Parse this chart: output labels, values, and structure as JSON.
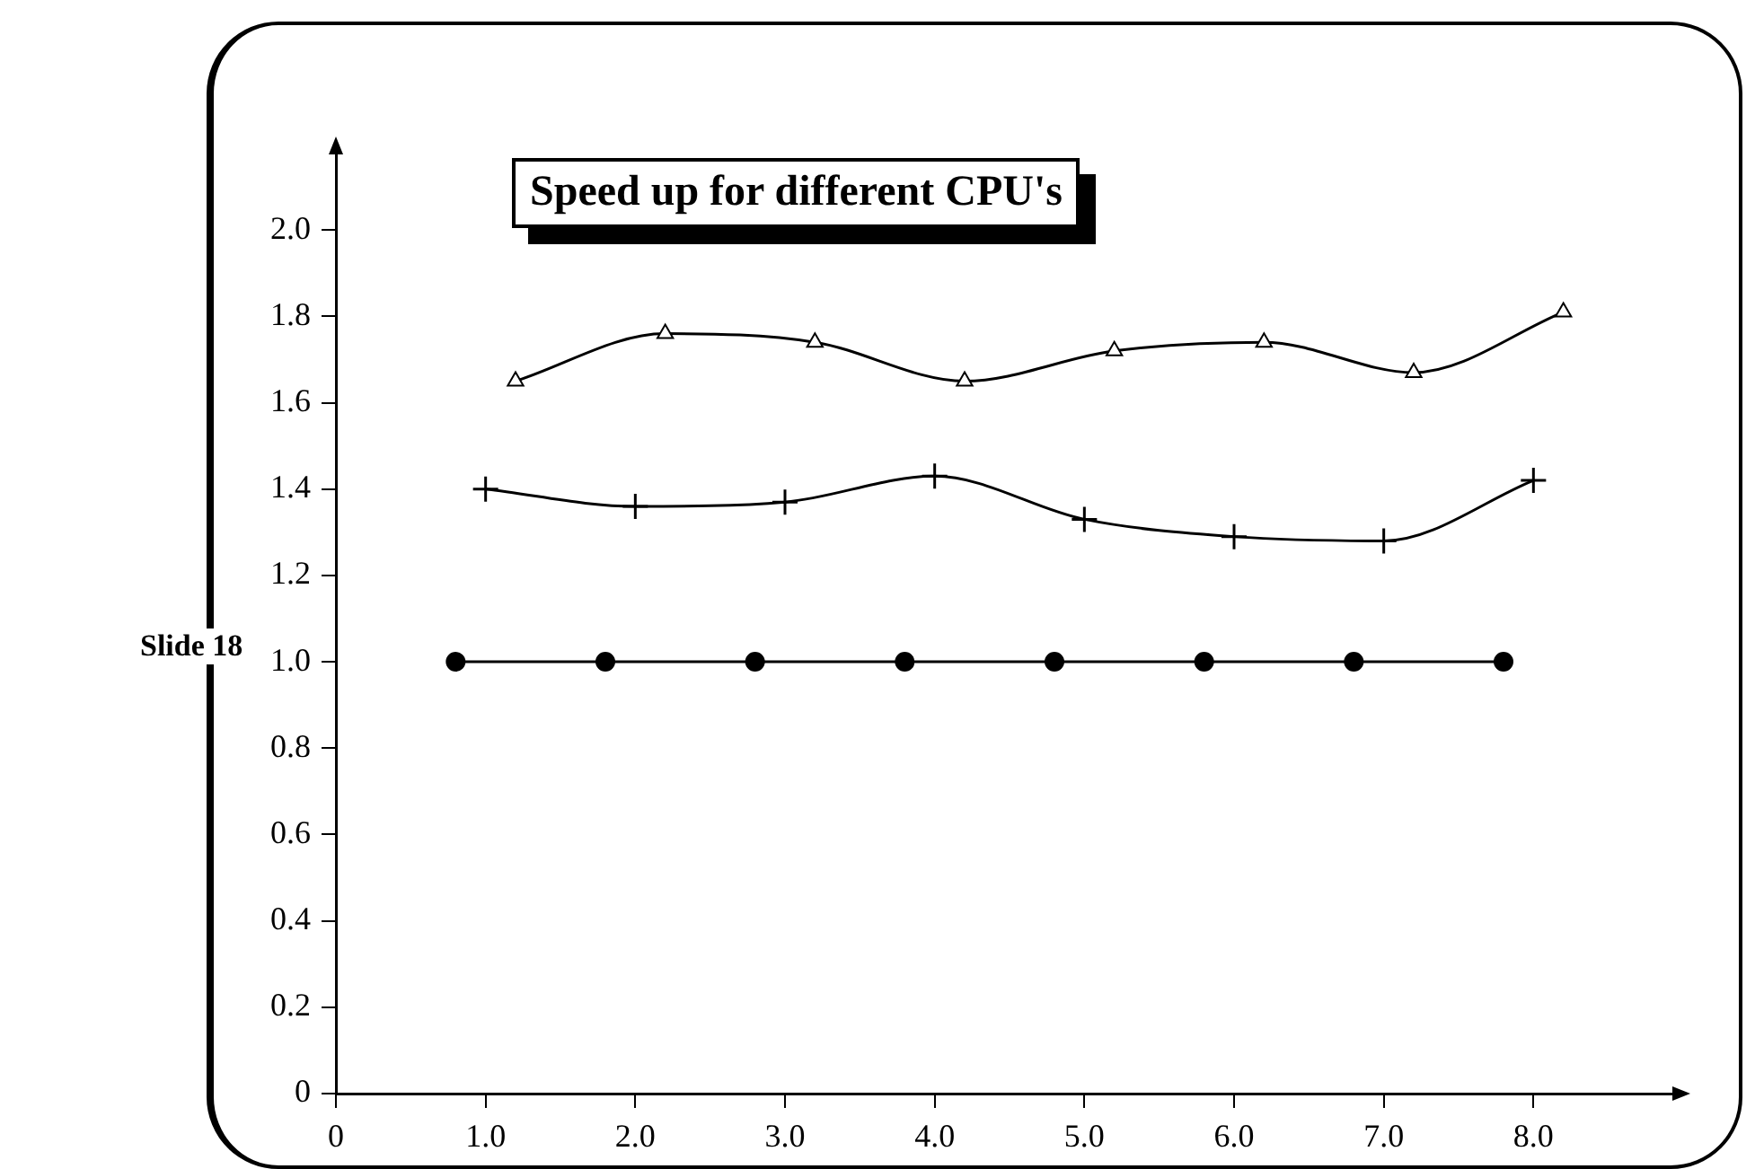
{
  "chart_data": {
    "type": "line",
    "title": "Speed up for different CPU's",
    "annotations": [
      "Slide 18"
    ],
    "xlim": [
      0,
      9
    ],
    "ylim": [
      0,
      2.2
    ],
    "xticks": [
      0,
      {
        "value": 1,
        "label": "1.0"
      },
      {
        "value": 2,
        "label": "2.0"
      },
      {
        "value": 3,
        "label": "3.0"
      },
      {
        "value": 4,
        "label": "4.0"
      },
      {
        "value": 5,
        "label": "5.0"
      },
      {
        "value": 6,
        "label": "6.0"
      },
      {
        "value": 7,
        "label": "7.0"
      },
      {
        "value": 8,
        "label": "8.0"
      }
    ],
    "yticks": [
      0,
      {
        "value": 0.2,
        "label": "0.2"
      },
      {
        "value": 0.4,
        "label": "0.4"
      },
      {
        "value": 0.6,
        "label": "0.6"
      },
      {
        "value": 0.8,
        "label": "0.8"
      },
      {
        "value": 1,
        "label": "1.0"
      },
      {
        "value": 1.2,
        "label": "1.2"
      },
      {
        "value": 1.4,
        "label": "1.4"
      },
      {
        "value": 1.6,
        "label": "1.6"
      },
      {
        "value": 1.8,
        "label": "1.8"
      },
      {
        "value": 2,
        "label": "2.0"
      }
    ],
    "grid": false,
    "legend": false,
    "series": [
      {
        "color": "#000000",
        "marker": "circle",
        "x": [
          0.8,
          1.8,
          2.8,
          3.8,
          4.8,
          5.8,
          6.8,
          7.8
        ],
        "values": [
          1.0,
          1.0,
          1.0,
          1.0,
          1.0,
          1.0,
          1.0,
          1.0
        ]
      },
      {
        "color": "#000000",
        "marker": "cross",
        "x": [
          1,
          2,
          3,
          4,
          5,
          6,
          7,
          8
        ],
        "values": [
          1.4,
          1.36,
          1.37,
          1.43,
          1.33,
          1.29,
          1.28,
          1.42
        ]
      },
      {
        "color": "#000000",
        "marker": "triangle",
        "x": [
          1.2,
          2.2,
          3.2,
          4.2,
          5.2,
          6.2,
          7.2,
          8.2
        ],
        "values": [
          1.65,
          1.76,
          1.74,
          1.65,
          1.72,
          1.74,
          1.67,
          1.81
        ]
      }
    ]
  }
}
